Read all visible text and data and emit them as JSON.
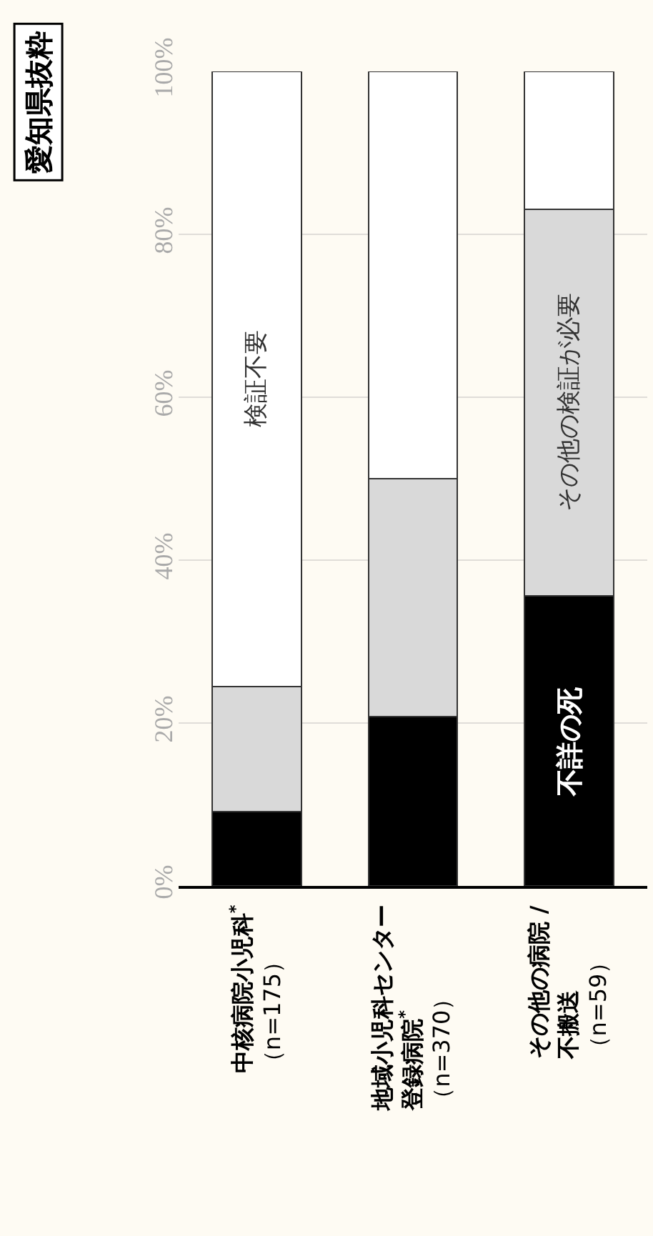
{
  "chart_data": {
    "type": "bar",
    "stacked": true,
    "title": "愛知県抜粋",
    "categories": [
      "中核病院小児科$^{*}$（n=175）",
      "地域小児科センター登録病院$^{*}$（n=370）",
      "その他の病院 /不搬送（n=59）"
    ],
    "series": [
      {
        "name": "不詳の死",
        "color": "#000000",
        "values": [
          9.1,
          20.8,
          35.6
        ]
      },
      {
        "name": "その他の検証が必要",
        "color": "#d9d9d9",
        "values": [
          15.4,
          29.2,
          47.5
        ]
      },
      {
        "name": "検証不要",
        "color": "#ffffff",
        "values": [
          75.5,
          50.0,
          16.9
        ]
      }
    ],
    "ylim": [
      0,
      100
    ],
    "yticks": [
      {
        "value": 0,
        "label": "0%"
      },
      {
        "value": 20,
        "label": "20%"
      },
      {
        "value": 40,
        "label": "40%"
      },
      {
        "value": 60,
        "label": "60%"
      },
      {
        "value": 80,
        "label": "80%"
      },
      {
        "value": 100,
        "label": "100%"
      }
    ],
    "grid": "y"
  }
}
